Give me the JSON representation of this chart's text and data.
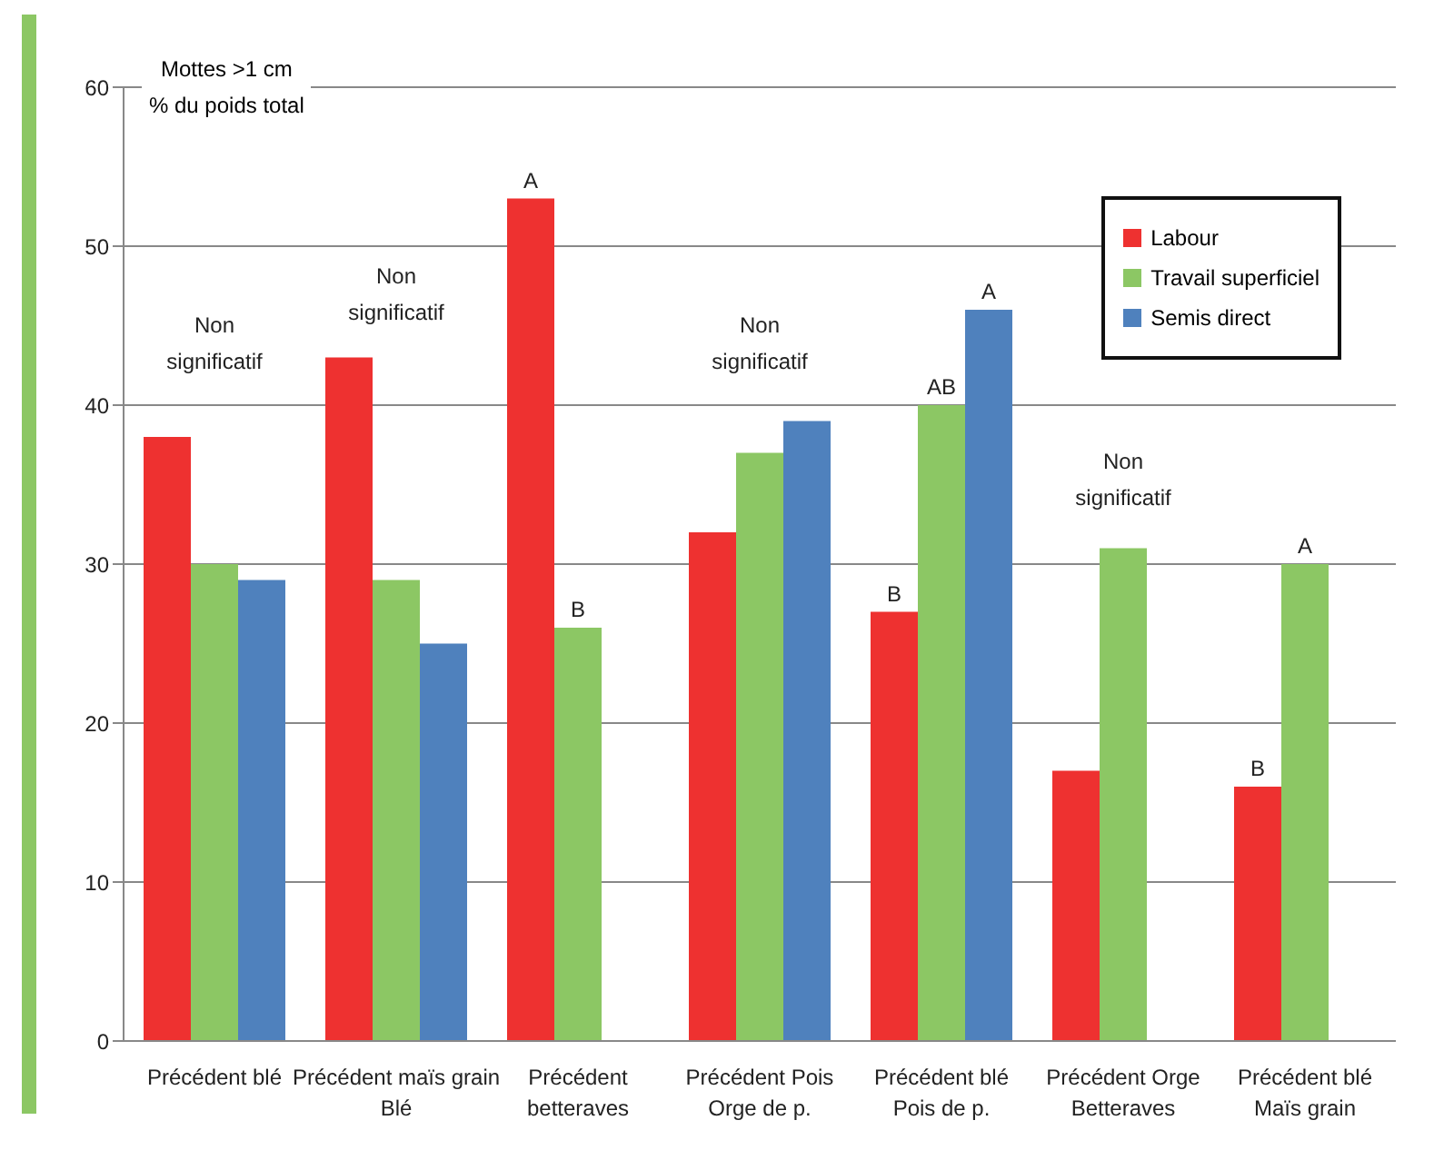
{
  "chart_data": {
    "type": "bar",
    "ylabel": "Mottes >1 cm\n% du poids total",
    "categories": [
      "Précédent blé",
      "Précédent maïs grain\nBlé",
      "Précédent\nbetteraves",
      "Précédent Pois\nOrge de p.",
      "Précédent blé\nPois de p.",
      "Précédent Orge\nBetteraves",
      "Précédent blé\nMaïs grain"
    ],
    "series": [
      {
        "name": "Labour",
        "color": "#ee3130",
        "values": [
          38,
          43,
          53,
          32,
          27,
          17,
          16
        ]
      },
      {
        "name": "Travail superficiel",
        "color": "#8cc764",
        "values": [
          30,
          29,
          26,
          37,
          40,
          31,
          30
        ]
      },
      {
        "name": "Semis direct",
        "color": "#4f81bd",
        "values": [
          29,
          25,
          null,
          39,
          46,
          null,
          null
        ]
      }
    ],
    "ylim": [
      0,
      60
    ],
    "yticks": [
      0,
      10,
      20,
      30,
      40,
      50,
      60
    ],
    "grid": "y",
    "legend": "top right",
    "annotations": [
      "Non\nsignificatif",
      "Non\nsignificatif",
      "A",
      "B",
      "Non\nsignificatif",
      "B",
      "AB",
      "A",
      "Non\nsignificatif",
      "B",
      "A"
    ]
  }
}
